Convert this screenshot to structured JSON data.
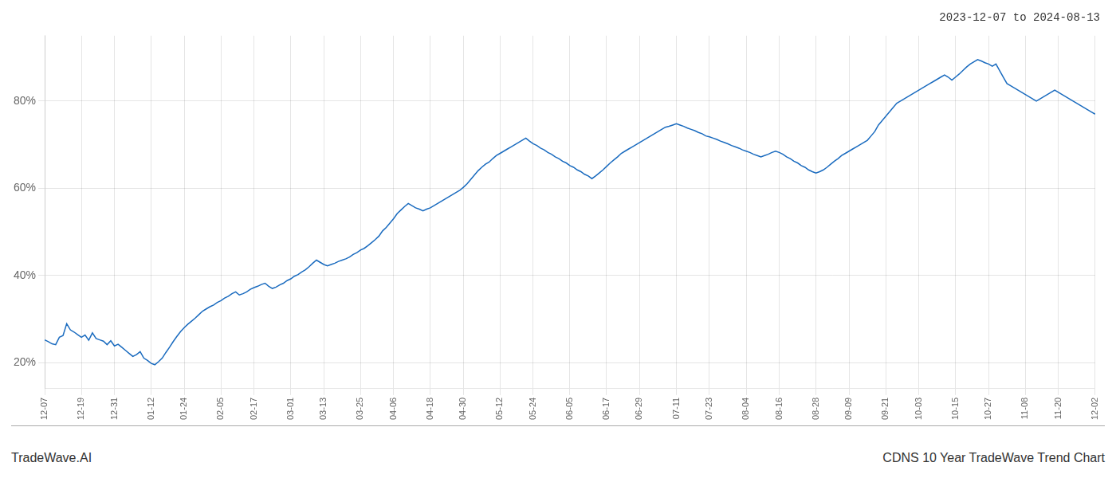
{
  "chart_data": {
    "type": "line",
    "title": "2023-12-07 to 2024-08-13",
    "annotations": [
      "TradeWave.AI",
      "CDNS 10 Year TradeWave Trend Chart"
    ],
    "color": "#1a6bbf",
    "grid": true,
    "ylim": [
      14,
      95
    ],
    "yticks": [
      {
        "value": 20,
        "label": "20%"
      },
      {
        "value": 40,
        "label": "40%"
      },
      {
        "value": 60,
        "label": "60%"
      },
      {
        "value": 80,
        "label": "80%"
      }
    ],
    "categories": [
      "12-07",
      null,
      null,
      null,
      null,
      null,
      null,
      null,
      null,
      null,
      "12-19",
      null,
      null,
      null,
      null,
      null,
      null,
      null,
      null,
      "12-31",
      null,
      null,
      null,
      null,
      null,
      null,
      null,
      null,
      null,
      "01-12",
      null,
      null,
      null,
      null,
      null,
      null,
      null,
      null,
      "01-24",
      null,
      null,
      null,
      null,
      null,
      null,
      null,
      null,
      null,
      "02-05",
      null,
      null,
      null,
      null,
      null,
      null,
      null,
      null,
      "02-17",
      null,
      null,
      null,
      null,
      null,
      null,
      null,
      null,
      null,
      "03-01",
      null,
      null,
      null,
      null,
      null,
      null,
      null,
      null,
      "03-13",
      null,
      null,
      null,
      null,
      null,
      null,
      null,
      null,
      null,
      "03-25",
      null,
      null,
      null,
      null,
      null,
      null,
      null,
      null,
      "04-06",
      null,
      null,
      null,
      null,
      null,
      null,
      null,
      null,
      null,
      "04-18",
      null,
      null,
      null,
      null,
      null,
      null,
      null,
      null,
      "04-30",
      null,
      null,
      null,
      null,
      null,
      null,
      null,
      null,
      null,
      "05-12",
      null,
      null,
      null,
      null,
      null,
      null,
      null,
      null,
      "05-24",
      null,
      null,
      null,
      null,
      null,
      null,
      null,
      null,
      null,
      "06-05",
      null,
      null,
      null,
      null,
      null,
      null,
      null,
      null,
      null,
      "06-17",
      null,
      null,
      null,
      null,
      null,
      null,
      null,
      null,
      "06-29",
      null,
      null,
      null,
      null,
      null,
      null,
      null,
      null,
      null,
      "07-11",
      null,
      null,
      null,
      null,
      null,
      null,
      null,
      null,
      "07-23",
      null,
      null,
      null,
      null,
      null,
      null,
      null,
      null,
      null,
      "08-04",
      null,
      null,
      null,
      null,
      null,
      null,
      null,
      null,
      "08-16",
      null,
      null,
      null,
      null,
      null,
      null,
      null,
      null,
      null,
      "08-28",
      null,
      null,
      null,
      null,
      null,
      null,
      null,
      null,
      "09-09",
      null,
      null,
      null,
      null,
      null,
      null,
      null,
      null,
      null,
      "09-21",
      null,
      null,
      null,
      null,
      null,
      null,
      null,
      null,
      "10-03",
      null,
      null,
      null,
      null,
      null,
      null,
      null,
      null,
      null,
      "10-15",
      null,
      null,
      null,
      null,
      null,
      null,
      null,
      null,
      "10-27",
      null,
      null,
      null,
      null,
      null,
      null,
      null,
      null,
      null,
      "11-08",
      null,
      null,
      null,
      null,
      null,
      null,
      null,
      null,
      "11-20",
      null,
      null,
      null,
      null,
      null,
      null,
      null,
      null,
      null,
      "12-02"
    ],
    "values": [
      25.2,
      24.8,
      24.3,
      24.1,
      25.8,
      26.2,
      28.9,
      27.5,
      27.0,
      26.4,
      25.8,
      26.3,
      25.1,
      26.8,
      25.5,
      25.2,
      24.9,
      24.1,
      25.0,
      23.8,
      24.2,
      23.5,
      22.8,
      22.1,
      21.4,
      21.8,
      22.5,
      21.0,
      20.5,
      19.8,
      19.5,
      20.2,
      21.0,
      22.3,
      23.5,
      24.8,
      26.0,
      27.1,
      28.0,
      28.8,
      29.5,
      30.2,
      31.0,
      31.8,
      32.3,
      32.8,
      33.2,
      33.8,
      34.2,
      34.8,
      35.2,
      35.8,
      36.2,
      35.5,
      35.8,
      36.2,
      36.8,
      37.2,
      37.5,
      37.9,
      38.2,
      37.5,
      37.0,
      37.3,
      37.8,
      38.2,
      38.8,
      39.2,
      39.8,
      40.2,
      40.8,
      41.3,
      42.0,
      42.8,
      43.5,
      43.0,
      42.5,
      42.2,
      42.5,
      42.8,
      43.2,
      43.5,
      43.8,
      44.2,
      44.8,
      45.2,
      45.8,
      46.2,
      46.8,
      47.5,
      48.2,
      49.0,
      50.2,
      51.0,
      52.0,
      53.0,
      54.2,
      55.0,
      55.8,
      56.5,
      56.0,
      55.5,
      55.2,
      54.8,
      55.2,
      55.5,
      56.0,
      56.5,
      57.0,
      57.5,
      58.0,
      58.5,
      59.0,
      59.5,
      60.2,
      61.0,
      62.0,
      63.0,
      64.0,
      64.8,
      65.5,
      66.0,
      66.8,
      67.5,
      68.0,
      68.5,
      69.0,
      69.5,
      70.0,
      70.5,
      71.0,
      71.5,
      70.8,
      70.2,
      69.8,
      69.2,
      68.8,
      68.2,
      67.8,
      67.2,
      66.8,
      66.2,
      65.8,
      65.2,
      64.8,
      64.2,
      63.8,
      63.2,
      62.8,
      62.2,
      62.8,
      63.5,
      64.2,
      65.0,
      65.8,
      66.5,
      67.2,
      68.0,
      68.5,
      69.0,
      69.5,
      70.0,
      70.5,
      71.0,
      71.5,
      72.0,
      72.5,
      73.0,
      73.5,
      74.0,
      74.2,
      74.5,
      74.8,
      74.5,
      74.2,
      73.8,
      73.5,
      73.2,
      72.8,
      72.5,
      72.0,
      71.8,
      71.5,
      71.2,
      70.8,
      70.5,
      70.2,
      69.8,
      69.5,
      69.2,
      68.8,
      68.5,
      68.2,
      67.8,
      67.5,
      67.2,
      67.5,
      67.8,
      68.2,
      68.5,
      68.2,
      67.8,
      67.2,
      66.8,
      66.2,
      65.8,
      65.2,
      64.8,
      64.2,
      63.8,
      63.5,
      63.8,
      64.2,
      64.8,
      65.5,
      66.2,
      66.8,
      67.5,
      68.0,
      68.5,
      69.0,
      69.5,
      70.0,
      70.5,
      71.0,
      72.0,
      73.0,
      74.5,
      75.5,
      76.5,
      77.5,
      78.5,
      79.5,
      80.0,
      80.5,
      81.0,
      81.5,
      82.0,
      82.5,
      83.0,
      83.5,
      84.0,
      84.5,
      85.0,
      85.5,
      86.0,
      85.5,
      84.8,
      85.5,
      86.2,
      87.0,
      87.8,
      88.5,
      89.0,
      89.5,
      89.2,
      88.8,
      88.5,
      88.0,
      88.5,
      87.0,
      85.5,
      84.0,
      83.5,
      83.0,
      82.5,
      82.0,
      81.5,
      81.0,
      80.5,
      80.0,
      80.5,
      81.0,
      81.5,
      82.0,
      82.5,
      82.0,
      81.5,
      81.0,
      80.5,
      80.0,
      79.5,
      79.0,
      78.5,
      78.0,
      77.5,
      77.0
    ]
  }
}
